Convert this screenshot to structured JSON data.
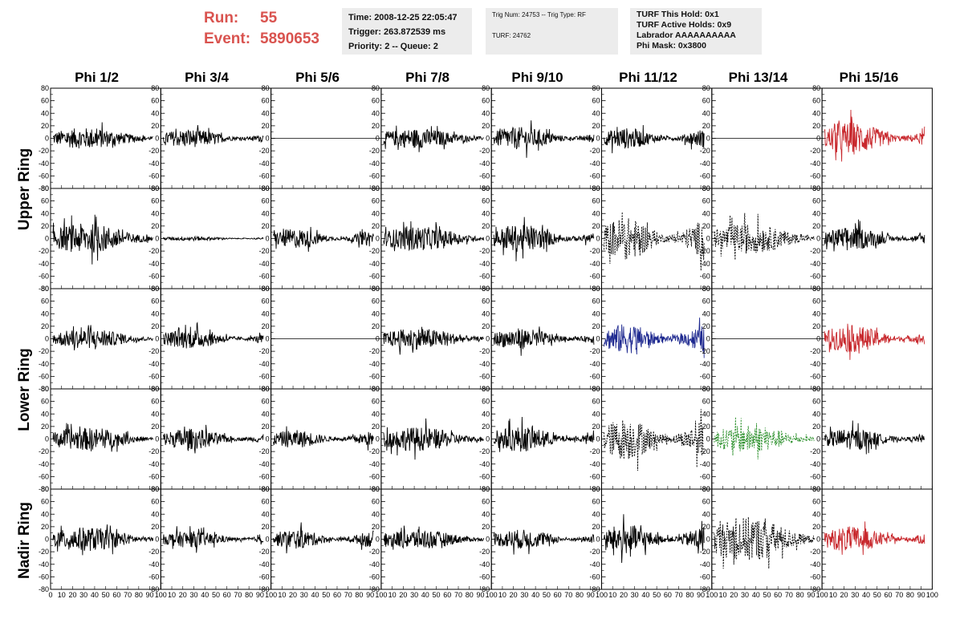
{
  "run": {
    "run_label": "Run:",
    "run_value": "55",
    "event_label": "Event:",
    "event_value": "5890653"
  },
  "info1": {
    "time": "Time: 2008-12-25 22:05:47",
    "trigger": "Trigger: 263.872539 ms",
    "priority": "Priority: 2 -- Queue: 2"
  },
  "info2": {
    "trig": "Trig Num: 24753 -- Trig Type: RF",
    "turf": "TURF: 24762"
  },
  "info3": {
    "hold": "TURF This Hold: 0x1",
    "active": "TURF Active Holds: 0x9",
    "labrador": "Labrador AAAAAAAAAA",
    "mask": "Phi Mask: 0x3800"
  },
  "phi_labels": [
    "Phi 1/2",
    "Phi 3/4",
    "Phi 5/6",
    "Phi 7/8",
    "Phi 9/10",
    "Phi 11/12",
    "Phi 13/14",
    "Phi 15/16"
  ],
  "ring_labels": [
    "Upper Ring",
    "Lower Ring",
    "Nadir Ring"
  ],
  "chart_data": {
    "type": "line",
    "title": "",
    "y_ticks": [
      "80",
      "60",
      "40",
      "20",
      "0",
      "-20",
      "-40",
      "-60",
      "-80"
    ],
    "x_ticks": [
      "0",
      "10",
      "20",
      "30",
      "40",
      "50",
      "60",
      "70",
      "80",
      "90",
      "100"
    ],
    "xlim": [
      0,
      100
    ],
    "ylim": [
      -80,
      80
    ],
    "colors": {
      "normal": "#000000",
      "red": "#c8282d",
      "blue": "#1f2a90",
      "green": "#2a8f2a"
    },
    "panels": [
      [
        {
          "style": "solid",
          "color": "normal",
          "amp": 14
        },
        {
          "style": "solid",
          "color": "normal",
          "amp": 12
        },
        {
          "style": "flat",
          "color": "normal",
          "amp": 0
        },
        {
          "style": "solid",
          "color": "normal",
          "amp": 13
        },
        {
          "style": "solid",
          "color": "normal",
          "amp": 15
        },
        {
          "style": "solid",
          "color": "normal",
          "amp": 14
        },
        {
          "style": "flat",
          "color": "normal",
          "amp": 0
        },
        {
          "style": "solid",
          "color": "red",
          "amp": 22
        }
      ],
      [
        {
          "style": "solid",
          "color": "normal",
          "amp": 20
        },
        {
          "style": "solid",
          "color": "normal",
          "amp": 3
        },
        {
          "style": "solid",
          "color": "normal",
          "amp": 13
        },
        {
          "style": "solid",
          "color": "normal",
          "amp": 16
        },
        {
          "style": "solid",
          "color": "normal",
          "amp": 18
        },
        {
          "style": "dashed",
          "color": "normal",
          "amp": 28
        },
        {
          "style": "dashed",
          "color": "normal",
          "amp": 20
        },
        {
          "style": "solid",
          "color": "normal",
          "amp": 15
        }
      ],
      [
        {
          "style": "solid",
          "color": "normal",
          "amp": 13
        },
        {
          "style": "solid",
          "color": "normal",
          "amp": 13
        },
        {
          "style": "flat",
          "color": "normal",
          "amp": 0
        },
        {
          "style": "solid",
          "color": "normal",
          "amp": 14
        },
        {
          "style": "solid",
          "color": "normal",
          "amp": 14
        },
        {
          "style": "solid",
          "color": "blue",
          "amp": 20
        },
        {
          "style": "flat",
          "color": "normal",
          "amp": 0
        },
        {
          "style": "solid",
          "color": "red",
          "amp": 18
        }
      ],
      [
        {
          "style": "solid",
          "color": "normal",
          "amp": 15
        },
        {
          "style": "solid",
          "color": "normal",
          "amp": 14
        },
        {
          "style": "solid",
          "color": "normal",
          "amp": 12
        },
        {
          "style": "solid",
          "color": "normal",
          "amp": 16
        },
        {
          "style": "solid",
          "color": "normal",
          "amp": 17
        },
        {
          "style": "dashed",
          "color": "normal",
          "amp": 28
        },
        {
          "style": "dashed",
          "color": "green",
          "amp": 18
        },
        {
          "style": "solid",
          "color": "normal",
          "amp": 14
        }
      ],
      [
        {
          "style": "solid",
          "color": "normal",
          "amp": 16
        },
        {
          "style": "solid",
          "color": "normal",
          "amp": 11
        },
        {
          "style": "solid",
          "color": "normal",
          "amp": 13
        },
        {
          "style": "solid",
          "color": "normal",
          "amp": 13
        },
        {
          "style": "solid",
          "color": "normal",
          "amp": 13
        },
        {
          "style": "solid",
          "color": "normal",
          "amp": 20
        },
        {
          "style": "dashed",
          "color": "normal",
          "amp": 30
        },
        {
          "style": "solid",
          "color": "red",
          "amp": 17
        }
      ]
    ]
  }
}
